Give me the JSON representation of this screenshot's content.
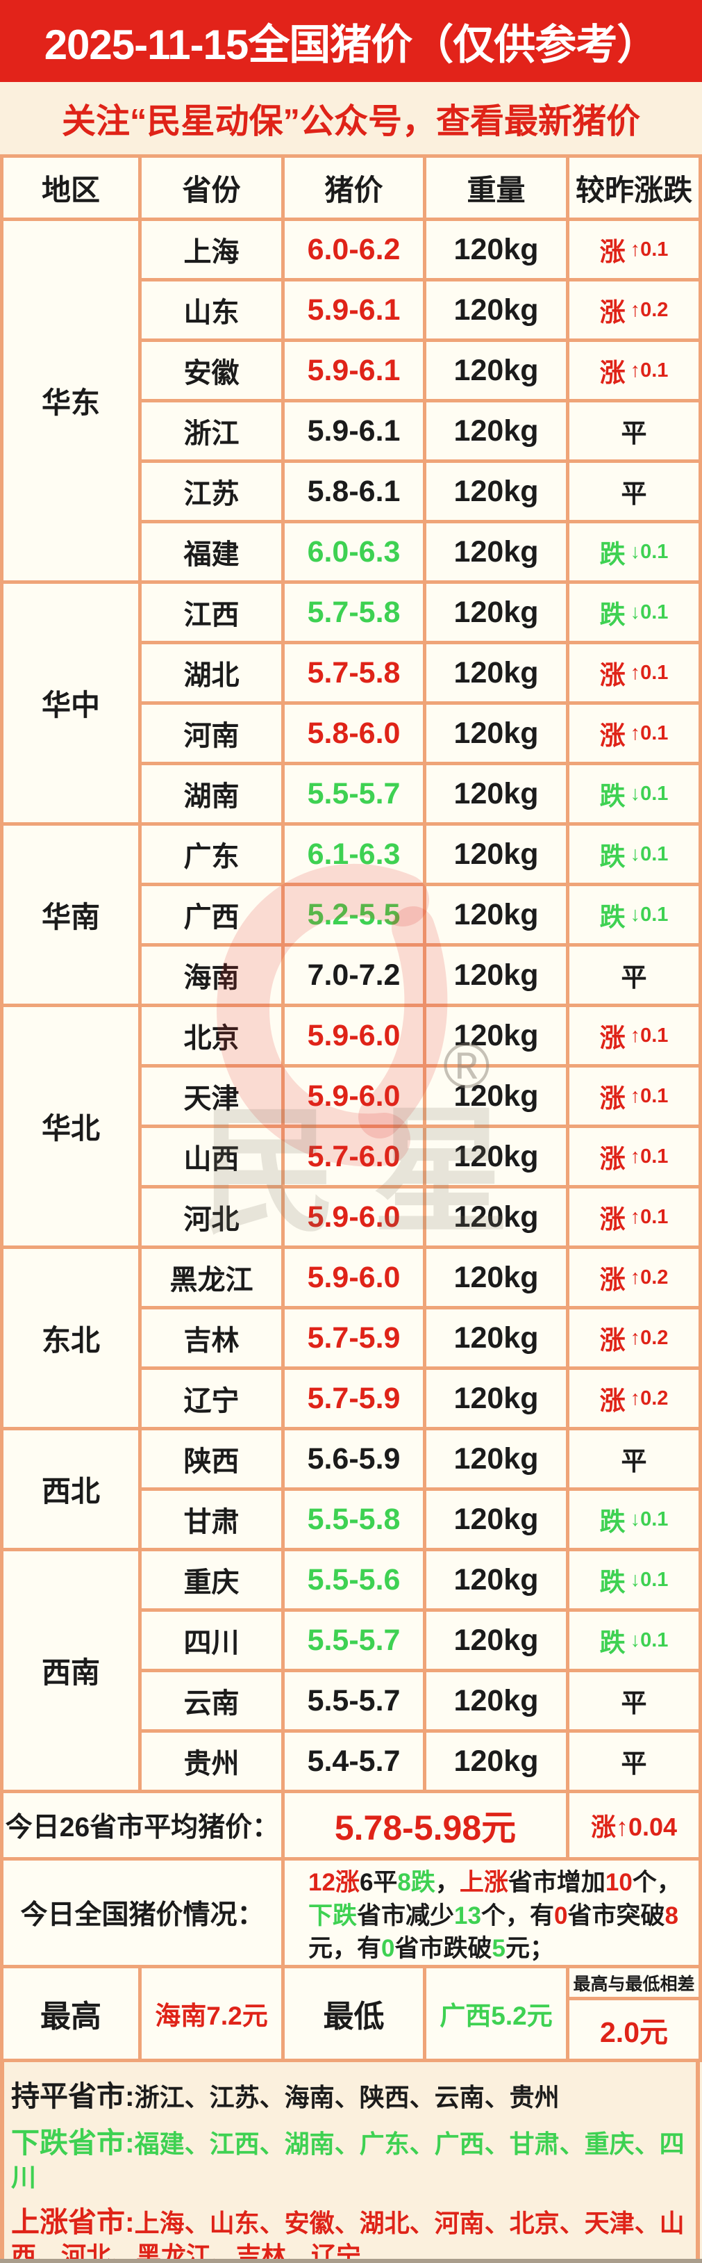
{
  "page": {
    "title": "2025-11-15全国猪价（仅供参考）",
    "subtitle": "关注“民星动保”公众号，查看最新猪价"
  },
  "colors": {
    "red": "#df2318",
    "green": "#3ed152",
    "black": "#1b1b1b",
    "border_orange": "#efa478",
    "page_bg": "#fbf0dd",
    "cell_bg": "#fffdf3",
    "title_bg": "#e2231a",
    "title_text": "#ffffff"
  },
  "table": {
    "columns": [
      "地区",
      "省份",
      "猪价",
      "重量",
      "较昨涨跌"
    ],
    "regions": [
      {
        "name": "华东",
        "rows": [
          {
            "province": "上海",
            "price": "6.0-6.2",
            "weight": "120kg",
            "change": "涨",
            "delta": "↑0.1",
            "dir": "up"
          },
          {
            "province": "山东",
            "price": "5.9-6.1",
            "weight": "120kg",
            "change": "涨",
            "delta": "↑0.2",
            "dir": "up"
          },
          {
            "province": "安徽",
            "price": "5.9-6.1",
            "weight": "120kg",
            "change": "涨",
            "delta": "↑0.1",
            "dir": "up"
          },
          {
            "province": "浙江",
            "price": "5.9-6.1",
            "weight": "120kg",
            "change": "平",
            "delta": "",
            "dir": "flat"
          },
          {
            "province": "江苏",
            "price": "5.8-6.1",
            "weight": "120kg",
            "change": "平",
            "delta": "",
            "dir": "flat"
          },
          {
            "province": "福建",
            "price": "6.0-6.3",
            "weight": "120kg",
            "change": "跌",
            "delta": "↓0.1",
            "dir": "down"
          }
        ]
      },
      {
        "name": "华中",
        "rows": [
          {
            "province": "江西",
            "price": "5.7-5.8",
            "weight": "120kg",
            "change": "跌",
            "delta": "↓0.1",
            "dir": "down"
          },
          {
            "province": "湖北",
            "price": "5.7-5.8",
            "weight": "120kg",
            "change": "涨",
            "delta": "↑0.1",
            "dir": "up"
          },
          {
            "province": "河南",
            "price": "5.8-6.0",
            "weight": "120kg",
            "change": "涨",
            "delta": "↑0.1",
            "dir": "up"
          },
          {
            "province": "湖南",
            "price": "5.5-5.7",
            "weight": "120kg",
            "change": "跌",
            "delta": "↓0.1",
            "dir": "down"
          }
        ]
      },
      {
        "name": "华南",
        "rows": [
          {
            "province": "广东",
            "price": "6.1-6.3",
            "weight": "120kg",
            "change": "跌",
            "delta": "↓0.1",
            "dir": "down"
          },
          {
            "province": "广西",
            "price": "5.2-5.5",
            "weight": "120kg",
            "change": "跌",
            "delta": "↓0.1",
            "dir": "down"
          },
          {
            "province": "海南",
            "price": "7.0-7.2",
            "weight": "120kg",
            "change": "平",
            "delta": "",
            "dir": "flat"
          }
        ]
      },
      {
        "name": "华北",
        "rows": [
          {
            "province": "北京",
            "price": "5.9-6.0",
            "weight": "120kg",
            "change": "涨",
            "delta": "↑0.1",
            "dir": "up"
          },
          {
            "province": "天津",
            "price": "5.9-6.0",
            "weight": "120kg",
            "change": "涨",
            "delta": "↑0.1",
            "dir": "up"
          },
          {
            "province": "山西",
            "price": "5.7-6.0",
            "weight": "120kg",
            "change": "涨",
            "delta": "↑0.1",
            "dir": "up"
          },
          {
            "province": "河北",
            "price": "5.9-6.0",
            "weight": "120kg",
            "change": "涨",
            "delta": "↑0.1",
            "dir": "up"
          }
        ]
      },
      {
        "name": "东北",
        "rows": [
          {
            "province": "黑龙江",
            "price": "5.9-6.0",
            "weight": "120kg",
            "change": "涨",
            "delta": "↑0.2",
            "dir": "up"
          },
          {
            "province": "吉林",
            "price": "5.7-5.9",
            "weight": "120kg",
            "change": "涨",
            "delta": "↑0.2",
            "dir": "up"
          },
          {
            "province": "辽宁",
            "price": "5.7-5.9",
            "weight": "120kg",
            "change": "涨",
            "delta": "↑0.2",
            "dir": "up"
          }
        ]
      },
      {
        "name": "西北",
        "rows": [
          {
            "province": "陕西",
            "price": "5.6-5.9",
            "weight": "120kg",
            "change": "平",
            "delta": "",
            "dir": "flat"
          },
          {
            "province": "甘肃",
            "price": "5.5-5.8",
            "weight": "120kg",
            "change": "跌",
            "delta": "↓0.1",
            "dir": "down"
          }
        ]
      },
      {
        "name": "西南",
        "rows": [
          {
            "province": "重庆",
            "price": "5.5-5.6",
            "weight": "120kg",
            "change": "跌",
            "delta": "↓0.1",
            "dir": "down"
          },
          {
            "province": "四川",
            "price": "5.5-5.7",
            "weight": "120kg",
            "change": "跌",
            "delta": "↓0.1",
            "dir": "down"
          },
          {
            "province": "云南",
            "price": "5.5-5.7",
            "weight": "120kg",
            "change": "平",
            "delta": "",
            "dir": "flat"
          },
          {
            "province": "贵州",
            "price": "5.4-5.7",
            "weight": "120kg",
            "change": "平",
            "delta": "",
            "dir": "flat"
          }
        ]
      }
    ]
  },
  "summary": {
    "avg_label": "今日26省市平均猪价：",
    "avg_value": "5.78-5.98元",
    "avg_change": "涨↑0.04",
    "situation_label": "今日全国猪价情况：",
    "situation_segments": [
      {
        "t": "12涨",
        "c": "red"
      },
      {
        "t": "6平",
        "c": "black"
      },
      {
        "t": "8跌",
        "c": "green"
      },
      {
        "t": "，",
        "c": "black"
      },
      {
        "t": "上涨",
        "c": "red"
      },
      {
        "t": "省市增加",
        "c": "black"
      },
      {
        "t": "10",
        "c": "red"
      },
      {
        "t": "个，",
        "c": "black"
      },
      {
        "t": "下跌",
        "c": "green"
      },
      {
        "t": "省市减少",
        "c": "black"
      },
      {
        "t": "13",
        "c": "green"
      },
      {
        "t": "个，有",
        "c": "black"
      },
      {
        "t": "0",
        "c": "red"
      },
      {
        "t": "省市突破",
        "c": "black"
      },
      {
        "t": "8",
        "c": "red"
      },
      {
        "t": "元，",
        "c": "black"
      },
      {
        "t": "有",
        "c": "black"
      },
      {
        "t": "0",
        "c": "green"
      },
      {
        "t": "省市跌破",
        "c": "black"
      },
      {
        "t": "5",
        "c": "green"
      },
      {
        "t": "元；",
        "c": "black"
      }
    ]
  },
  "extremes": {
    "max_label": "最高",
    "max_value": "海南7.2元",
    "min_label": "最低",
    "min_value": "广西5.2元",
    "diff_label": "最高与最低相差",
    "diff_value": "2.0元"
  },
  "footer": {
    "lines": [
      {
        "label": "持平省市:",
        "list": "浙江、江苏、海南、陕西、云南、贵州",
        "color": "flat"
      },
      {
        "label": "下跌省市:",
        "list": "福建、江西、湖南、广东、广西、甘肃、重庆、四川",
        "color": "down"
      },
      {
        "label": "上涨省市:",
        "list": "上海、山东、安徽、湖北、河南、北京、天津、山西、河北、黑龙江、吉林、辽宁",
        "color": "up"
      }
    ]
  },
  "watermark": {
    "registered": "®",
    "brand_char_1": "民",
    "brand_char_2": "星"
  }
}
